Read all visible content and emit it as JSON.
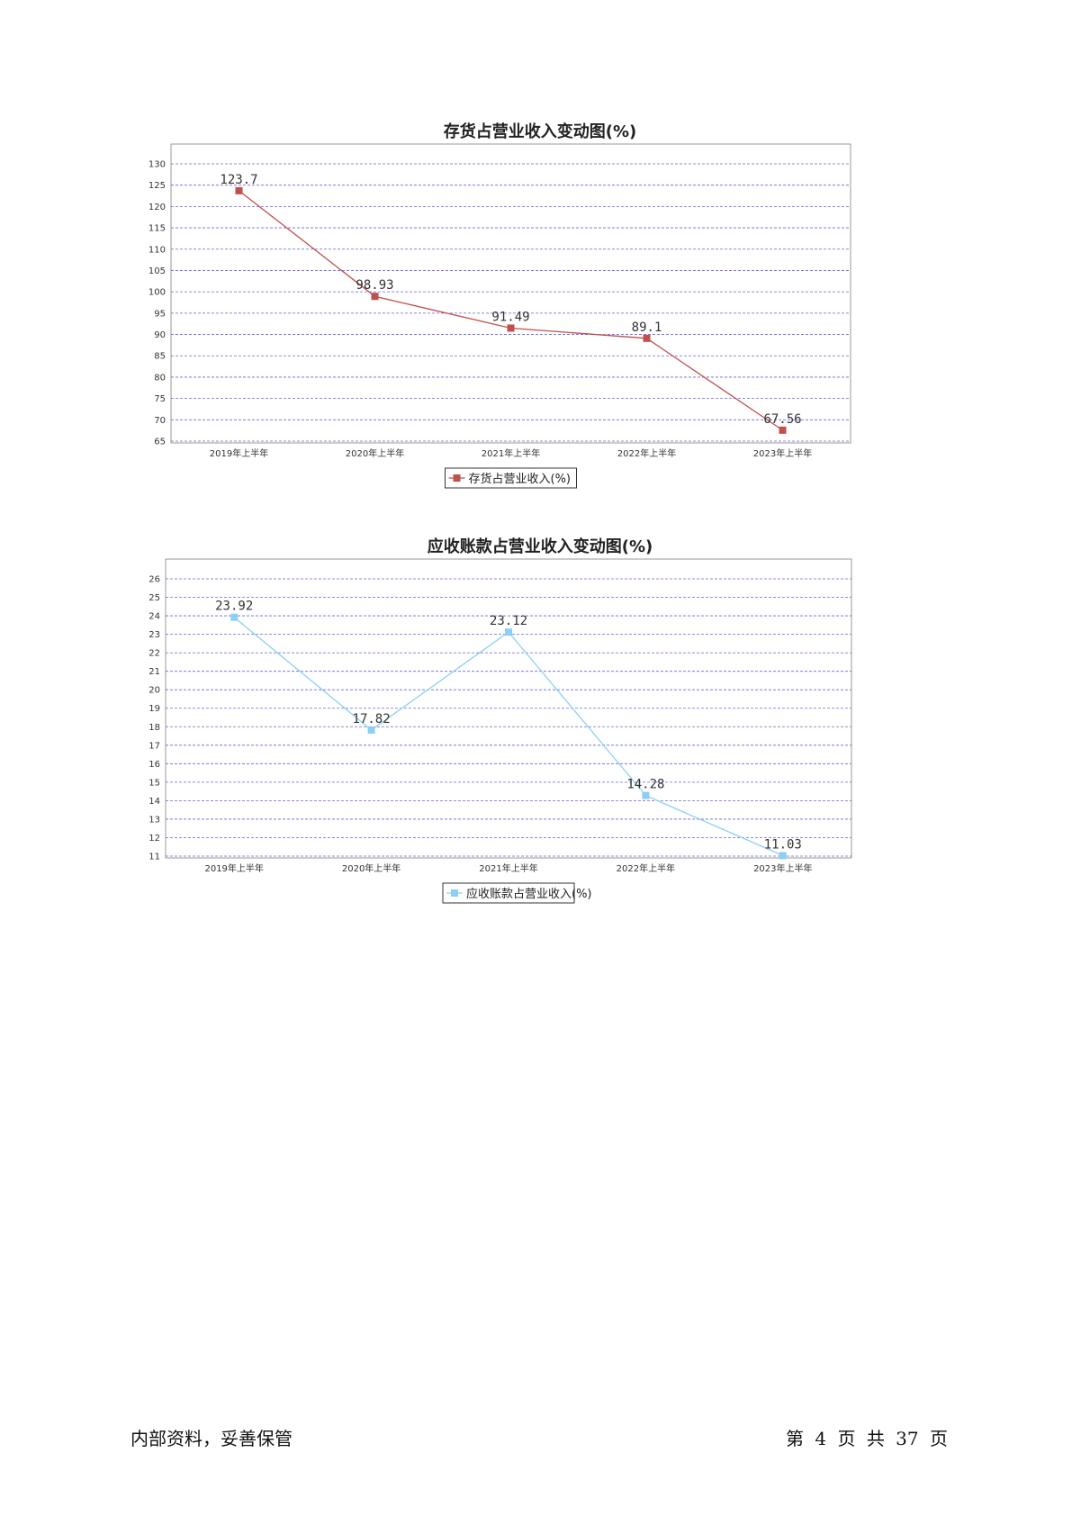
{
  "chart_data": [
    {
      "type": "line",
      "title": "存货占营业收入变动图(%)",
      "categories": [
        "2019年上半年",
        "2020年上半年",
        "2021年上半年",
        "2022年上半年",
        "2023年上半年"
      ],
      "series": [
        {
          "name": "存货占营业收入(%)",
          "values": [
            123.7,
            98.93,
            91.49,
            89.1,
            67.56
          ],
          "color": "#c0504d"
        }
      ],
      "value_labels": [
        "123.7",
        "98.93",
        "91.49",
        "89.1",
        "67.56"
      ],
      "ylim": [
        65,
        130
      ],
      "yticks": [
        65,
        70,
        75,
        80,
        85,
        90,
        95,
        100,
        105,
        110,
        115,
        120,
        125,
        130
      ],
      "grid": true,
      "grid_color": "#6666dd",
      "legend": "bottom-center"
    },
    {
      "type": "line",
      "title": "应收账款占营业收入变动图(%)",
      "categories": [
        "2019年上半年",
        "2020年上半年",
        "2021年上半年",
        "2022年上半年",
        "2023年上半年"
      ],
      "series": [
        {
          "name": "应收账款占营业收入(%)",
          "values": [
            23.92,
            17.82,
            23.12,
            14.28,
            11.03
          ],
          "color": "#8dcff4"
        }
      ],
      "value_labels": [
        "23.92",
        "17.82",
        "23.12",
        "14.28",
        "11.03"
      ],
      "ylim": [
        11,
        26
      ],
      "yticks": [
        11,
        12,
        13,
        14,
        15,
        16,
        17,
        18,
        19,
        20,
        21,
        22,
        23,
        24,
        25,
        26
      ],
      "grid": true,
      "grid_color": "#6666dd",
      "legend": "bottom-center"
    }
  ],
  "footer": {
    "left": "内部资料，妥善保管",
    "right": "第 4 页  共 37 页"
  }
}
